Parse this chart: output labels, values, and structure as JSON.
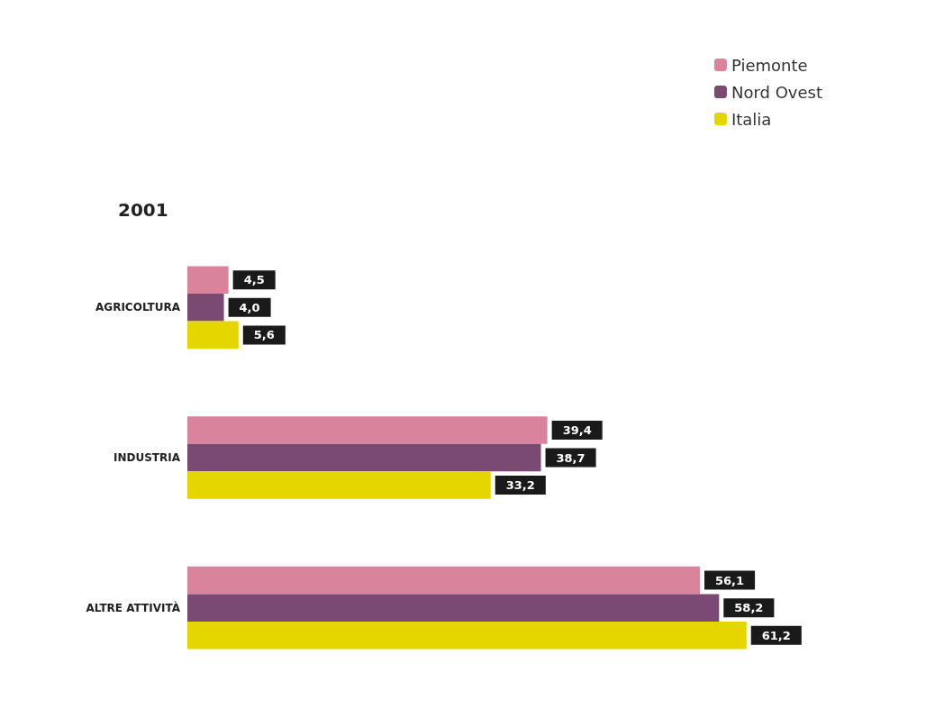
{
  "chart_data": {
    "type": "bar",
    "orientation": "horizontal",
    "title": "2001",
    "categories": [
      "AGRICOLTURA",
      "INDUSTRIA",
      "ALTRE ATTIVITÀ"
    ],
    "series": [
      {
        "name": "Piemonte",
        "color": "#d9849c",
        "values": [
          4.5,
          39.4,
          56.1
        ],
        "value_labels": [
          "4,5",
          "39,4",
          "56,1"
        ]
      },
      {
        "name": "Nord Ovest",
        "color": "#7b4a73",
        "values": [
          4.0,
          38.7,
          58.2
        ],
        "value_labels": [
          "4,0",
          "38,7",
          "58,2"
        ]
      },
      {
        "name": "Italia",
        "color": "#e5d600",
        "values": [
          5.6,
          33.2,
          61.2
        ],
        "value_labels": [
          "5,6",
          "33,2",
          "61,2"
        ]
      }
    ],
    "legend": "top right"
  }
}
